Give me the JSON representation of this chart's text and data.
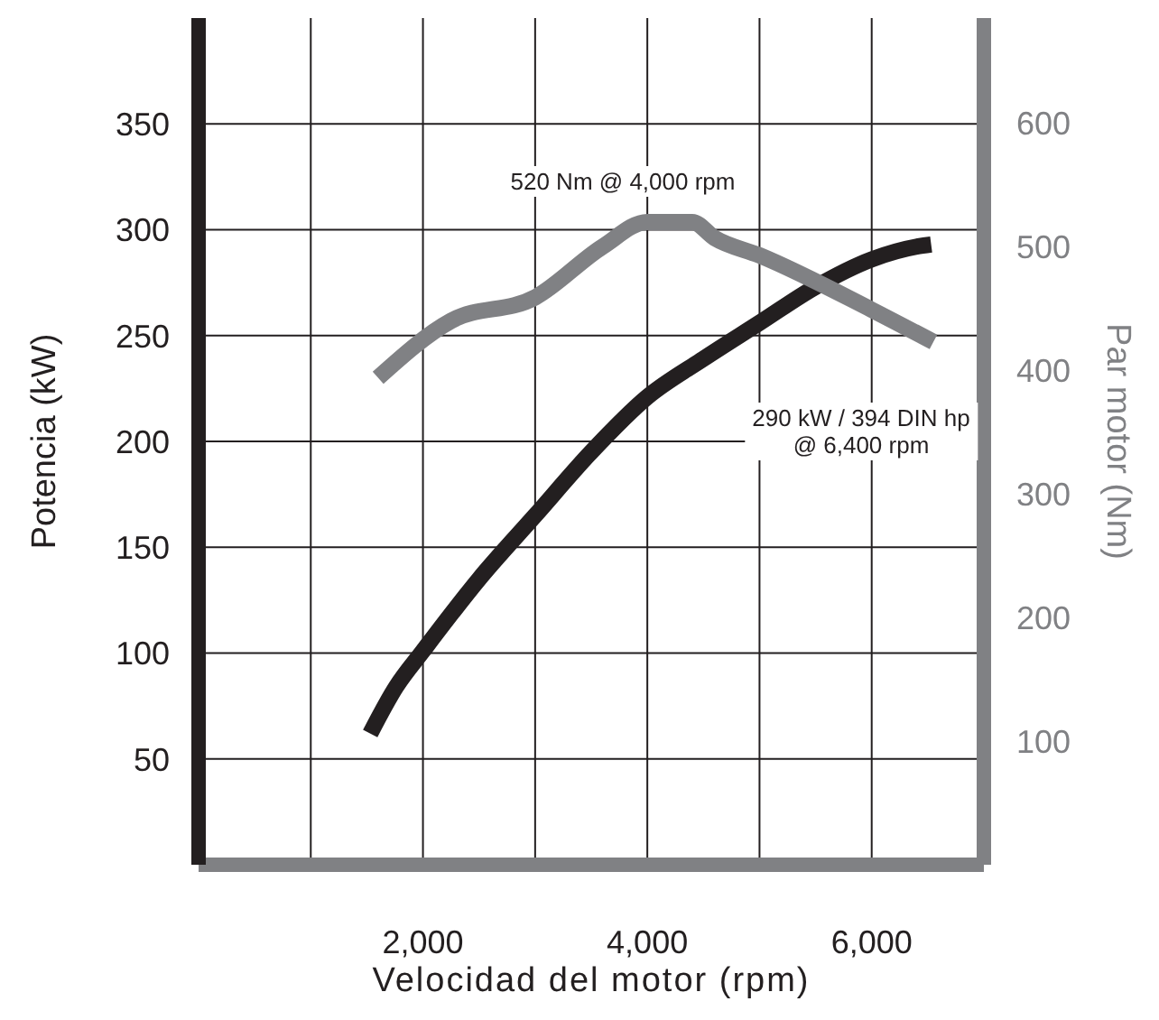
{
  "chart_data": {
    "type": "line",
    "xlabel": "Velocidad del motor (rpm)",
    "ylabel": "Potencia (kW)",
    "y2label": "Par motor (Nm)",
    "xlim": [
      0,
      7000
    ],
    "xticks": [
      {
        "value": 1000,
        "label": null
      },
      {
        "value": 2000,
        "label": "2,000"
      },
      {
        "value": 3000,
        "label": null
      },
      {
        "value": 4000,
        "label": "4,000"
      },
      {
        "value": 5000,
        "label": null
      },
      {
        "value": 6000,
        "label": "6,000"
      }
    ],
    "ylim": [
      0,
      400
    ],
    "yticks": [
      50,
      100,
      150,
      200,
      250,
      300,
      350
    ],
    "y2lim": [
      0,
      685
    ],
    "y2ticks": [
      100,
      200,
      300,
      400,
      500,
      600
    ],
    "grid": true,
    "marker": "none",
    "line_style": "solid",
    "series": [
      {
        "color": "#231f20",
        "x": [
          1530,
          1760,
          2000,
          2500,
          3000,
          3500,
          4000,
          4500,
          5000,
          5500,
          6000,
          6400,
          6530
        ],
        "values": [
          62,
          84,
          101,
          135,
          165,
          195,
          221,
          239,
          256,
          273,
          286,
          292,
          293
        ]
      },
      {
        "color": "#808184",
        "axis": "y2",
        "x": [
          1600,
          2250,
          3000,
          3600,
          4000,
          4400,
          4600,
          5000,
          6000,
          6550
        ],
        "values": [
          394,
          440,
          459,
          500,
          520,
          520,
          507,
          493,
          449,
          423
        ]
      }
    ],
    "annotations": [
      "520 Nm @ 4,000 rpm",
      "290 kW / 394 DIN hp\n@ 6,400 rpm"
    ]
  }
}
